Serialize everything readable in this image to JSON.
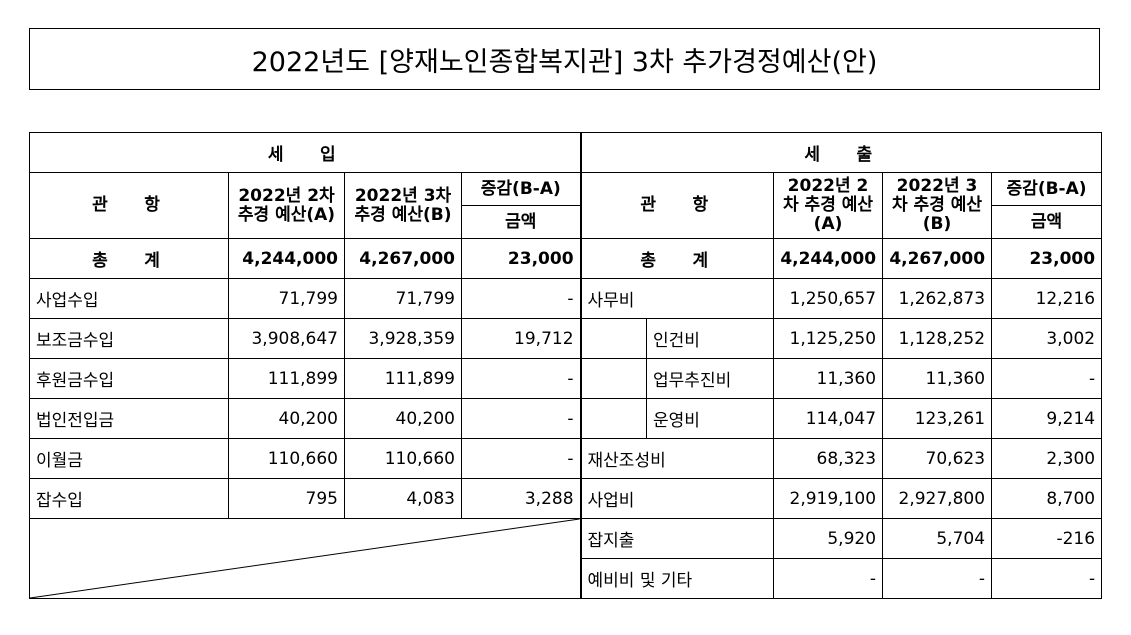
{
  "title": "2022년도 [양재노인종합복지관] 3차 추가경정예산(안)",
  "revenue": {
    "section_label": "세 입",
    "col_kwanhang": "관 항",
    "col_a": "2022년\n2차 추경\n예산(A)",
    "col_b": "2022년\n3차 추경\n예산(B)",
    "col_diff": "증감(B-A)",
    "col_amount": "금액",
    "total_label": "총 계",
    "total": {
      "a": "4,244,000",
      "b": "4,267,000",
      "diff": "23,000"
    },
    "rows": [
      {
        "name": "사업수입",
        "a": "71,799",
        "b": "71,799",
        "diff": "-"
      },
      {
        "name": "보조금수입",
        "a": "3,908,647",
        "b": "3,928,359",
        "diff": "19,712"
      },
      {
        "name": "후원금수입",
        "a": "111,899",
        "b": "111,899",
        "diff": "-"
      },
      {
        "name": "법인전입금",
        "a": "40,200",
        "b": "40,200",
        "diff": "-"
      },
      {
        "name": "이월금",
        "a": "110,660",
        "b": "110,660",
        "diff": "-"
      },
      {
        "name": "잡수입",
        "a": "795",
        "b": "4,083",
        "diff": "3,288"
      }
    ]
  },
  "expense": {
    "section_label": "세 출",
    "col_kwanhang": "관 항",
    "col_a": "2022년\n2차 추경\n예산(A)",
    "col_b": "2022년\n3차 추경\n예산(B)",
    "col_diff": "증감(B-A)",
    "col_amount": "금액",
    "total_label": "총 계",
    "total": {
      "a": "4,244,000",
      "b": "4,267,000",
      "diff": "23,000"
    },
    "rows": [
      {
        "name": "사무비",
        "a": "1,250,657",
        "b": "1,262,873",
        "diff": "12,216"
      },
      {
        "name": "인건비",
        "a": "1,125,250",
        "b": "1,128,252",
        "diff": "3,002"
      },
      {
        "name": "업무추진비",
        "a": "11,360",
        "b": "11,360",
        "diff": "-"
      },
      {
        "name": "운영비",
        "a": "114,047",
        "b": "123,261",
        "diff": "9,214"
      },
      {
        "name": "재산조성비",
        "a": "68,323",
        "b": "70,623",
        "diff": "2,300"
      },
      {
        "name": "사업비",
        "a": "2,919,100",
        "b": "2,927,800",
        "diff": "8,700"
      },
      {
        "name": "잡지출",
        "a": "5,920",
        "b": "5,704",
        "diff": "-216"
      },
      {
        "name": "예비비 및 기타",
        "a": "-",
        "b": "-",
        "diff": "-"
      }
    ]
  }
}
